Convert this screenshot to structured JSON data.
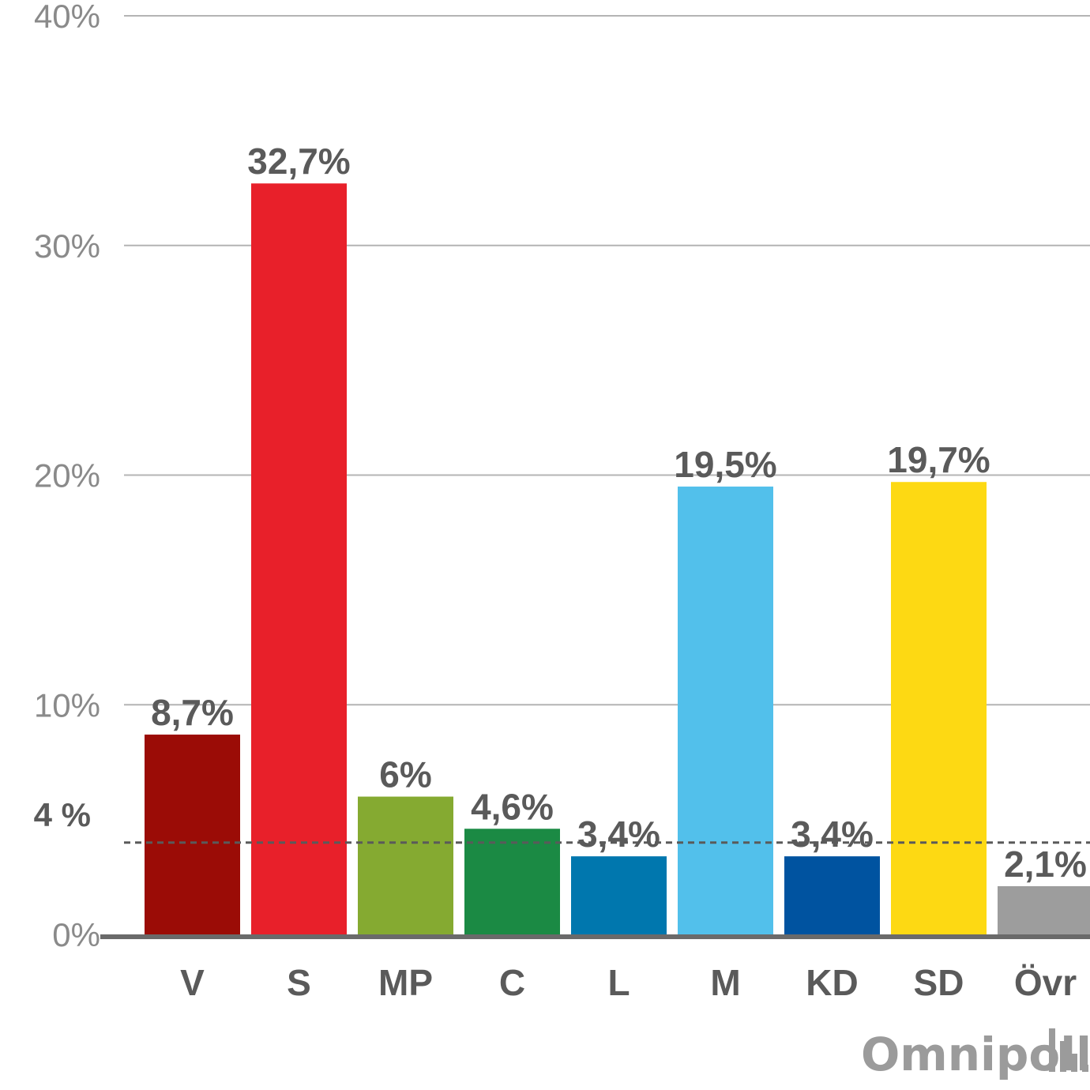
{
  "chart_data": {
    "type": "bar",
    "categories": [
      "V",
      "S",
      "MP",
      "C",
      "L",
      "M",
      "KD",
      "SD",
      "Övr"
    ],
    "values": [
      8.7,
      32.7,
      6,
      4.6,
      3.4,
      19.5,
      3.4,
      19.7,
      2.1
    ],
    "value_labels": [
      "8,7%",
      "32,7%",
      "6%",
      "4,6%",
      "3,4%",
      "19,5%",
      "3,4%",
      "19,7%",
      "2,1%"
    ],
    "colors": [
      "#9b0c06",
      "#e8202a",
      "#85aa31",
      "#1b8a44",
      "#0077ae",
      "#52c0eb",
      "#0053a0",
      "#fdd913",
      "#9d9d9d"
    ],
    "ylim": [
      0,
      40
    ],
    "yticks": [
      0,
      10,
      20,
      30,
      40
    ],
    "ytick_labels": [
      "0%",
      "10%",
      "20%",
      "30%",
      "40%"
    ],
    "grid": true,
    "threshold": {
      "value": 4,
      "label": "4 %",
      "style": "dashed"
    },
    "xlabel": "",
    "ylabel": ""
  },
  "branding": {
    "logo_text": "Omnipoll"
  }
}
